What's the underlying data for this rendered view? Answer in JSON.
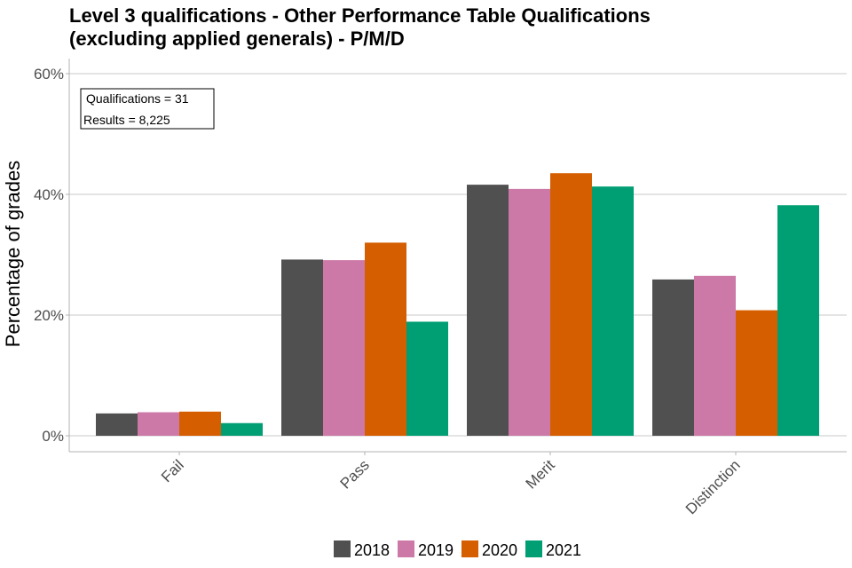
{
  "chart_data": {
    "type": "bar",
    "title_lines": [
      "Level 3 qualifications  - Other Performance Table Qualifications",
      "(excluding applied generals) - P/M/D"
    ],
    "xlabel": "",
    "ylabel": "Percentage of grades",
    "categories": [
      "Fail",
      "Pass",
      "Merit",
      "Distinction"
    ],
    "series": [
      {
        "name": "2018",
        "color": "#505050",
        "values": [
          3.7,
          29.2,
          41.6,
          25.9
        ]
      },
      {
        "name": "2019",
        "color": "#CC79A7",
        "values": [
          3.9,
          29.1,
          40.9,
          26.5
        ]
      },
      {
        "name": "2020",
        "color": "#D55E00",
        "values": [
          4.0,
          32.0,
          43.5,
          20.8
        ]
      },
      {
        "name": "2021",
        "color": "#009E73",
        "values": [
          2.1,
          18.9,
          41.3,
          38.2
        ]
      }
    ],
    "ylim": [
      0,
      60
    ],
    "yticks": [
      0,
      20,
      40,
      60
    ],
    "ytick_labels": [
      "0%",
      "20%",
      "40%",
      "60%"
    ],
    "grid": true,
    "legend_position": "bottom",
    "annotation": [
      "Qualifications = 31",
      "Results = 8,225"
    ]
  }
}
